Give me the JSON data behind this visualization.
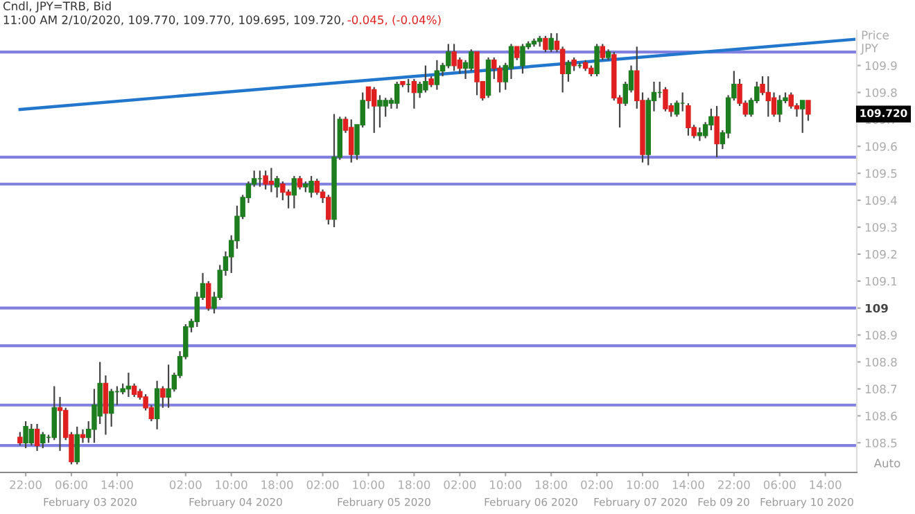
{
  "chart_data": {
    "type": "candlestick",
    "title": "Cndl, JPY=TRB, Bid",
    "subtitle": "11:00 AM 2/10/2020, 109.770, 109.770, 109.695, 109.720,",
    "ylabel": "Price\nJPY",
    "annotations": [
      "-0.045, (-0.04%)",
      "109.720",
      "Auto",
      "February 03 2020",
      "February 04 2020",
      "February 05 2020",
      "February 06 2020",
      "February 07 2020",
      "Feb 09 20",
      "February 10 2020"
    ],
    "categories": [
      null,
      "22:00",
      null,
      null,
      null,
      null,
      null,
      null,
      null,
      "06:00",
      null,
      null,
      null,
      null,
      null,
      null,
      null,
      "14:00",
      null,
      null,
      null,
      null,
      null,
      null,
      null,
      null,
      null,
      null,
      null,
      "02:00",
      null,
      null,
      null,
      null,
      null,
      null,
      null,
      "10:00",
      null,
      null,
      null,
      null,
      null,
      null,
      null,
      "18:00",
      null,
      null,
      null,
      null,
      null,
      null,
      null,
      "02:00",
      null,
      null,
      null,
      null,
      null,
      null,
      null,
      "10:00",
      null,
      null,
      null,
      null,
      null,
      null,
      null,
      "18:00",
      null,
      null,
      null,
      null,
      null,
      null,
      null,
      "02:00",
      null,
      null,
      null,
      null,
      null,
      null,
      null,
      "10:00",
      null,
      null,
      null,
      null,
      null,
      null,
      null,
      "18:00",
      null,
      null,
      null,
      null,
      null,
      null,
      null,
      "02:00",
      null,
      null,
      null,
      null,
      null,
      null,
      null,
      "10:00",
      null,
      null,
      null,
      null,
      null,
      null,
      null,
      "14:00",
      null,
      null,
      null,
      null,
      null,
      null,
      null,
      "22:00",
      null,
      null,
      null,
      null,
      null,
      null,
      null,
      "06:00",
      null,
      null,
      null,
      null,
      null,
      null,
      null,
      "14:00",
      null,
      null,
      null,
      null,
      null
    ],
    "ohlc": [
      [
        108.52,
        108.54,
        108.49,
        108.5
      ],
      [
        108.5,
        108.58,
        108.48,
        108.56
      ],
      [
        108.5,
        108.57,
        108.49,
        108.55
      ],
      [
        108.55,
        108.57,
        108.47,
        108.49
      ],
      [
        108.5,
        108.54,
        108.48,
        108.53
      ],
      [
        108.52,
        108.53,
        108.5,
        108.52
      ],
      [
        108.52,
        108.71,
        108.51,
        108.63
      ],
      [
        108.63,
        108.67,
        108.47,
        108.62
      ],
      [
        108.62,
        108.63,
        108.51,
        108.52
      ],
      [
        108.53,
        108.54,
        108.42,
        108.43
      ],
      [
        108.43,
        108.56,
        108.42,
        108.53
      ],
      [
        108.53,
        108.55,
        108.5,
        108.52
      ],
      [
        108.52,
        108.58,
        108.5,
        108.55
      ],
      [
        108.55,
        108.7,
        108.5,
        108.64
      ],
      [
        108.6,
        108.8,
        108.57,
        108.72
      ],
      [
        108.72,
        108.75,
        108.53,
        108.61
      ],
      [
        108.61,
        108.7,
        108.56,
        108.69
      ],
      [
        108.69,
        108.71,
        108.64,
        108.69
      ],
      [
        108.69,
        108.72,
        108.68,
        108.7
      ],
      [
        108.7,
        108.76,
        108.67,
        108.71
      ],
      [
        108.71,
        108.72,
        108.67,
        108.68
      ],
      [
        108.69,
        108.7,
        108.66,
        108.67
      ],
      [
        108.67,
        108.68,
        108.62,
        108.63
      ],
      [
        108.63,
        108.64,
        108.58,
        108.59
      ],
      [
        108.59,
        108.73,
        108.55,
        108.7
      ],
      [
        108.7,
        108.71,
        108.63,
        108.67
      ],
      [
        108.67,
        108.79,
        108.63,
        108.7
      ],
      [
        108.7,
        108.76,
        108.69,
        108.75
      ],
      [
        108.75,
        108.84,
        108.74,
        108.82
      ],
      [
        108.82,
        108.94,
        108.81,
        108.93
      ],
      [
        108.93,
        108.96,
        108.91,
        108.95
      ],
      [
        108.95,
        109.06,
        108.93,
        109.04
      ],
      [
        109.04,
        109.13,
        109.03,
        109.09
      ],
      [
        109.09,
        109.1,
        108.99,
        109.0
      ],
      [
        109.0,
        109.06,
        108.98,
        109.04
      ],
      [
        109.04,
        109.16,
        109.03,
        109.14
      ],
      [
        109.14,
        109.21,
        109.12,
        109.19
      ],
      [
        109.19,
        109.27,
        109.13,
        109.25
      ],
      [
        109.25,
        109.38,
        109.22,
        109.34
      ],
      [
        109.34,
        109.42,
        109.33,
        109.41
      ],
      [
        109.41,
        109.47,
        109.39,
        109.46
      ],
      [
        109.46,
        109.51,
        109.45,
        109.48
      ],
      [
        109.48,
        109.51,
        109.45,
        109.48
      ],
      [
        109.49,
        109.51,
        109.44,
        109.46
      ],
      [
        109.47,
        109.52,
        109.43,
        109.46
      ],
      [
        109.45,
        109.49,
        109.41,
        109.48
      ],
      [
        109.46,
        109.47,
        109.4,
        109.43
      ],
      [
        109.43,
        109.44,
        109.37,
        109.42
      ],
      [
        109.42,
        109.49,
        109.37,
        109.48
      ],
      [
        109.48,
        109.49,
        109.44,
        109.45
      ],
      [
        109.45,
        109.47,
        109.43,
        109.46
      ],
      [
        109.43,
        109.49,
        109.41,
        109.47
      ],
      [
        109.47,
        109.48,
        109.42,
        109.43
      ],
      [
        109.43,
        109.44,
        109.39,
        109.41
      ],
      [
        109.41,
        109.42,
        109.31,
        109.33
      ],
      [
        109.33,
        109.72,
        109.3,
        109.56
      ],
      [
        109.56,
        109.71,
        109.55,
        109.7
      ],
      [
        109.7,
        109.71,
        109.65,
        109.66
      ],
      [
        109.67,
        109.7,
        109.54,
        109.57
      ],
      [
        109.57,
        109.68,
        109.55,
        109.68
      ],
      [
        109.68,
        109.8,
        109.67,
        109.77
      ],
      [
        109.82,
        109.82,
        109.74,
        109.77
      ],
      [
        109.81,
        109.82,
        109.65,
        109.75
      ],
      [
        109.75,
        109.79,
        109.67,
        109.77
      ],
      [
        109.75,
        109.78,
        109.71,
        109.77
      ],
      [
        109.76,
        109.78,
        109.74,
        109.77
      ],
      [
        109.76,
        109.84,
        109.74,
        109.83
      ],
      [
        109.84,
        109.84,
        109.82,
        109.83
      ],
      [
        109.83,
        109.85,
        109.8,
        109.83
      ],
      [
        109.84,
        109.85,
        109.74,
        109.8
      ],
      [
        109.8,
        109.84,
        109.78,
        109.83
      ],
      [
        109.81,
        109.9,
        109.8,
        109.84
      ],
      [
        109.85,
        109.86,
        109.82,
        109.83
      ],
      [
        109.83,
        109.92,
        109.81,
        109.88
      ],
      [
        109.88,
        109.91,
        109.86,
        109.9
      ],
      [
        109.9,
        109.98,
        109.89,
        109.95
      ],
      [
        109.95,
        109.98,
        109.88,
        109.9
      ],
      [
        109.92,
        109.93,
        109.87,
        109.89
      ],
      [
        109.89,
        109.92,
        109.85,
        109.91
      ],
      [
        109.89,
        109.96,
        109.88,
        109.95
      ],
      [
        109.95,
        109.95,
        109.79,
        109.84
      ],
      [
        109.84,
        109.84,
        109.77,
        109.78
      ],
      [
        109.79,
        109.93,
        109.78,
        109.92
      ],
      [
        109.92,
        109.93,
        109.85,
        109.89
      ],
      [
        109.89,
        109.9,
        109.8,
        109.84
      ],
      [
        109.84,
        109.91,
        109.81,
        109.9
      ],
      [
        109.89,
        109.98,
        109.85,
        109.97
      ],
      [
        109.97,
        109.97,
        109.92,
        109.93
      ],
      [
        109.9,
        109.98,
        109.87,
        109.97
      ],
      [
        109.97,
        109.99,
        109.96,
        109.98
      ],
      [
        109.98,
        110.0,
        109.97,
        109.99
      ],
      [
        109.99,
        110.01,
        109.97,
        110.0
      ],
      [
        110.0,
        110.01,
        109.95,
        109.96
      ],
      [
        109.96,
        110.02,
        109.95,
        110.0
      ],
      [
        109.99,
        110.02,
        109.95,
        109.96
      ],
      [
        109.96,
        109.97,
        109.8,
        109.87
      ],
      [
        109.87,
        109.92,
        109.84,
        109.91
      ],
      [
        109.92,
        109.93,
        109.88,
        109.9
      ],
      [
        109.9,
        109.91,
        109.89,
        109.9
      ],
      [
        109.91,
        109.92,
        109.88,
        109.89
      ],
      [
        109.89,
        109.9,
        109.86,
        109.87
      ],
      [
        109.87,
        109.98,
        109.86,
        109.97
      ],
      [
        109.97,
        109.98,
        109.92,
        109.93
      ],
      [
        109.93,
        109.96,
        109.92,
        109.95
      ],
      [
        109.94,
        109.95,
        109.77,
        109.78
      ],
      [
        109.78,
        109.79,
        109.67,
        109.76
      ],
      [
        109.76,
        109.84,
        109.75,
        109.83
      ],
      [
        109.81,
        109.9,
        109.8,
        109.88
      ],
      [
        109.88,
        109.97,
        109.74,
        109.77
      ],
      [
        109.77,
        109.8,
        109.54,
        109.57
      ],
      [
        109.57,
        109.78,
        109.53,
        109.77
      ],
      [
        109.77,
        109.84,
        109.73,
        109.8
      ],
      [
        109.8,
        109.84,
        109.78,
        109.8
      ],
      [
        109.81,
        109.82,
        109.73,
        109.74
      ],
      [
        109.75,
        109.76,
        109.71,
        109.73
      ],
      [
        109.72,
        109.77,
        109.71,
        109.76
      ],
      [
        109.76,
        109.8,
        109.73,
        109.76
      ],
      [
        109.75,
        109.76,
        109.64,
        109.67
      ],
      [
        109.67,
        109.68,
        109.63,
        109.64
      ],
      [
        109.64,
        109.67,
        109.62,
        109.65
      ],
      [
        109.64,
        109.69,
        109.63,
        109.68
      ],
      [
        109.68,
        109.74,
        109.66,
        109.71
      ],
      [
        109.71,
        109.75,
        109.56,
        109.61
      ],
      [
        109.61,
        109.66,
        109.59,
        109.65
      ],
      [
        109.65,
        109.79,
        109.63,
        109.78
      ],
      [
        109.78,
        109.88,
        109.77,
        109.83
      ],
      [
        109.83,
        109.85,
        109.75,
        109.76
      ],
      [
        109.76,
        109.77,
        109.71,
        109.72
      ],
      [
        109.72,
        109.78,
        109.71,
        109.77
      ],
      [
        109.77,
        109.84,
        109.76,
        109.82
      ],
      [
        109.83,
        109.86,
        109.79,
        109.8
      ],
      [
        109.8,
        109.86,
        109.71,
        109.77
      ],
      [
        109.78,
        109.8,
        109.71,
        109.72
      ],
      [
        109.72,
        109.79,
        109.69,
        109.77
      ],
      [
        109.77,
        109.8,
        109.76,
        109.78
      ],
      [
        109.79,
        109.8,
        109.74,
        109.75
      ],
      [
        109.75,
        109.76,
        109.71,
        109.74
      ],
      [
        109.74,
        109.77,
        109.65,
        109.77
      ],
      [
        109.77,
        109.77,
        109.695,
        109.72
      ],
      null,
      null,
      null,
      null,
      null,
      null,
      null,
      null
    ],
    "series": [
      {
        "type": "line",
        "color": "#2277cc",
        "values": [
          109.737,
          null,
          null,
          null,
          null,
          null,
          null,
          null,
          null,
          null,
          null,
          null,
          null,
          null,
          null,
          null,
          null,
          null,
          null,
          null,
          null,
          null,
          null,
          null,
          null,
          null,
          null,
          null,
          null,
          null,
          null,
          null,
          null,
          null,
          null,
          null,
          null,
          null,
          null,
          null,
          null,
          null,
          null,
          null,
          null,
          null,
          null,
          null,
          null,
          null,
          null,
          null,
          null,
          null,
          null,
          null,
          null,
          null,
          null,
          null,
          null,
          null,
          null,
          null,
          null,
          null,
          null,
          null,
          null,
          null,
          null,
          null,
          null,
          null,
          null,
          null,
          null,
          null,
          null,
          null,
          null,
          null,
          null,
          null,
          null,
          null,
          null,
          null,
          null,
          null,
          null,
          null,
          null,
          null,
          null,
          null,
          null,
          null,
          null,
          null,
          null,
          null,
          null,
          null,
          null,
          null,
          null,
          null,
          null,
          null,
          null,
          null,
          null,
          null,
          null,
          null,
          null,
          null,
          null,
          null,
          null,
          null,
          null,
          null,
          null,
          null,
          null,
          null,
          null,
          null,
          null,
          null,
          null,
          null,
          null,
          null,
          null,
          null,
          null,
          null,
          null,
          null,
          null,
          null,
          null,
          null,
          109.997
        ]
      }
    ],
    "ref_lines": [
      {
        "axis": "y",
        "value": 109.95,
        "color": "#8080e0"
      },
      {
        "axis": "y",
        "value": 109.56,
        "color": "#8080e0"
      },
      {
        "axis": "y",
        "value": 109.46,
        "color": "#8080e0"
      },
      {
        "axis": "y",
        "value": 109.0,
        "color": "#8080e0"
      },
      {
        "axis": "y",
        "value": 108.86,
        "color": "#8080e0"
      },
      {
        "axis": "y",
        "value": 108.64,
        "color": "#8080e0"
      },
      {
        "axis": "y",
        "value": 108.49,
        "color": "#8080e0"
      }
    ],
    "ylim": [
      108.39,
      110.03
    ],
    "yticks": [
      108.5,
      108.6,
      108.7,
      108.8,
      108.9,
      109,
      109.1,
      109.2,
      109.3,
      109.4,
      109.5,
      109.6,
      109.7,
      109.8,
      109.9
    ],
    "grid": false,
    "legend": false
  }
}
